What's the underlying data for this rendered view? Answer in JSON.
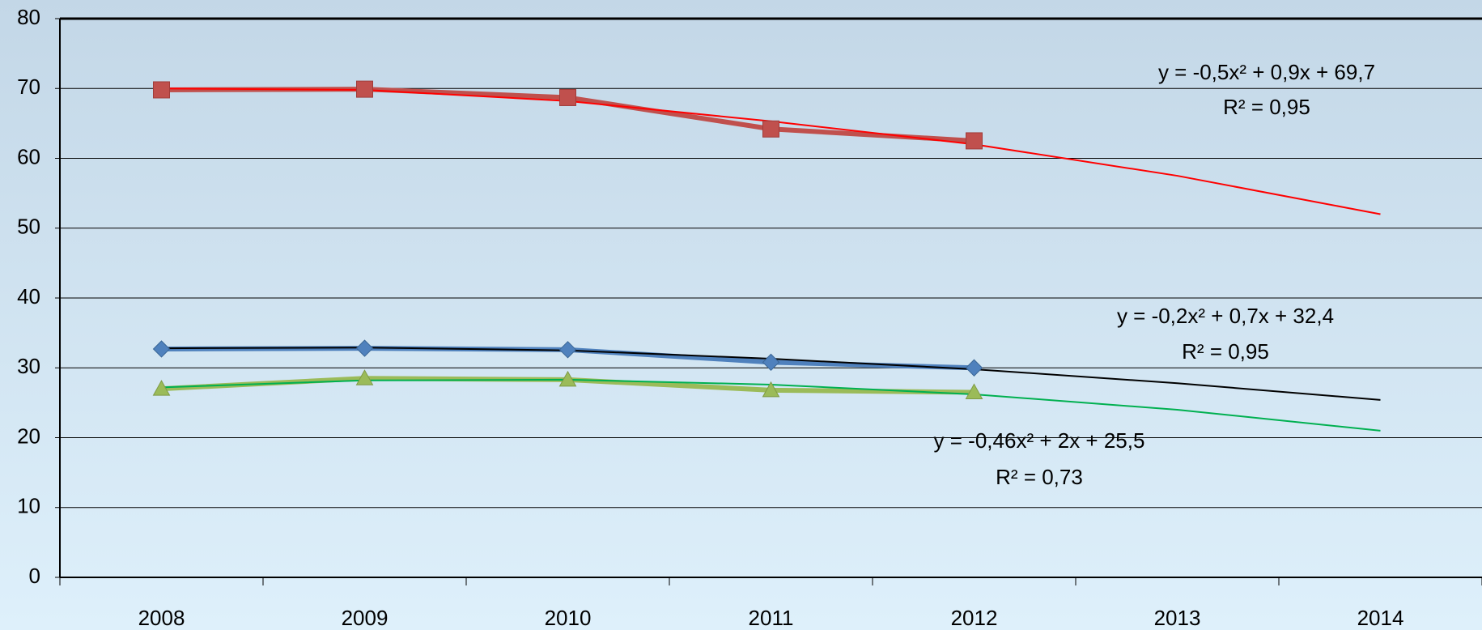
{
  "chart_data": {
    "type": "line",
    "categories": [
      "2008",
      "2009",
      "2010",
      "2011",
      "2012",
      "2013",
      "2014"
    ],
    "series": [
      {
        "color": "#c0504d",
        "marker": "square",
        "values": [
          69.8,
          69.9,
          68.7,
          64.2,
          62.5,
          null,
          null
        ]
      },
      {
        "color": "#4f81bd",
        "marker": "diamond",
        "values": [
          32.7,
          32.8,
          32.6,
          30.8,
          30.0,
          null,
          null
        ]
      },
      {
        "color": "#9bbb59",
        "marker": "triangle",
        "values": [
          27.0,
          28.5,
          28.3,
          26.8,
          26.5,
          null,
          null
        ]
      }
    ],
    "trendlines": [
      {
        "color": "#ff0000",
        "equation": "y = -0,5x² + 0,9x + 69,7",
        "r2": "R² = 0,95",
        "values": [
          70.0,
          69.8,
          68.2,
          65.3,
          62.0,
          57.5,
          52.0
        ]
      },
      {
        "color": "#000000",
        "equation": "y = -0,2x² + 0,7x + 32,4",
        "r2": "R² = 0,95",
        "values": [
          32.8,
          32.9,
          32.5,
          31.3,
          29.8,
          27.8,
          25.4
        ]
      },
      {
        "color": "#00b050",
        "equation": "y = -0,46x² + 2x + 25,5",
        "r2": "R² = 0,73",
        "values": [
          27.2,
          28.2,
          28.3,
          27.6,
          26.2,
          24.0,
          21.0
        ]
      }
    ],
    "ylim": [
      0,
      80
    ],
    "yticks": [
      0,
      10,
      20,
      30,
      40,
      50,
      60,
      70,
      80
    ],
    "grid": true
  }
}
